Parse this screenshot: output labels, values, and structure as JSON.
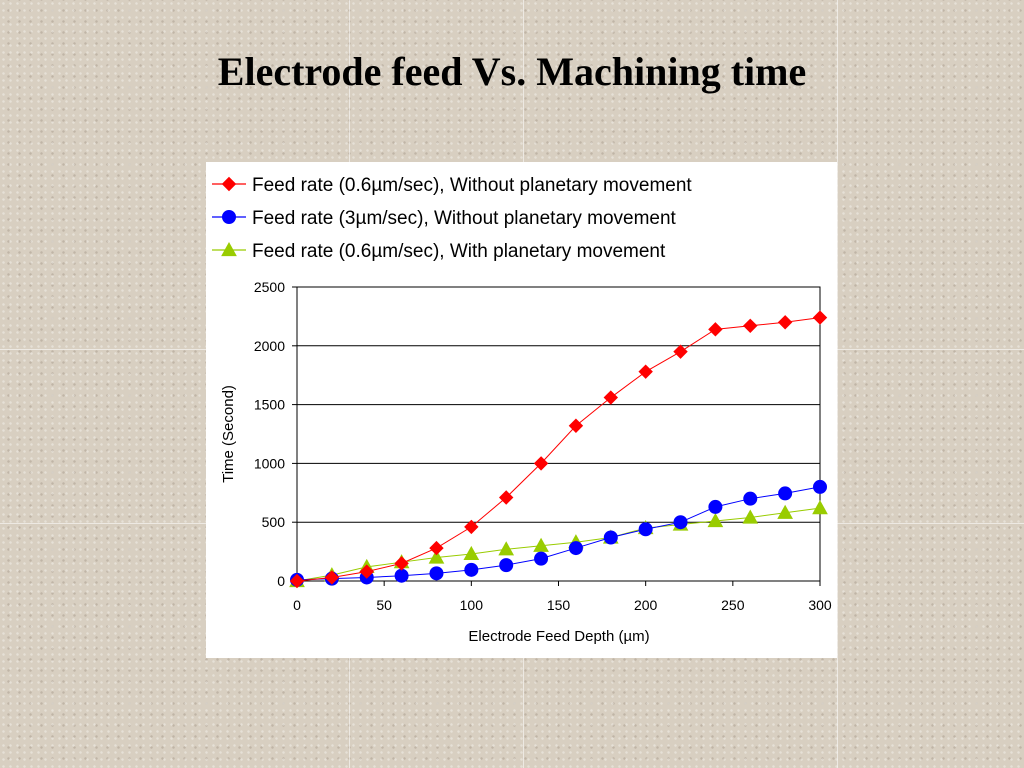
{
  "slide": {
    "title": "Electrode feed Vs. Machining time"
  },
  "chart_data": {
    "type": "line",
    "title": "",
    "xlabel": "Electrode Feed Depth (µm)",
    "ylabel": "Time (Second)",
    "xlim": [
      0,
      300
    ],
    "ylim": [
      0,
      2500
    ],
    "xticks": [
      0,
      50,
      100,
      150,
      200,
      250,
      300
    ],
    "yticks": [
      0,
      500,
      1000,
      1500,
      2000,
      2500
    ],
    "grid": "horizontal",
    "legend_position": "top",
    "series": [
      {
        "name": "Feed rate (0.6µm/sec), Without planetary movement",
        "color": "#ff0000",
        "marker": "diamond",
        "x": [
          0,
          20,
          40,
          60,
          80,
          100,
          120,
          140,
          160,
          180,
          200,
          220,
          240,
          260,
          280,
          300
        ],
        "y": [
          0,
          30,
          80,
          150,
          280,
          460,
          710,
          1000,
          1320,
          1560,
          1780,
          1950,
          2140,
          2170,
          2200,
          2240
        ]
      },
      {
        "name": "Feed rate (3µm/sec), Without planetary movement",
        "color": "#0000ff",
        "marker": "circle",
        "x": [
          0,
          20,
          40,
          60,
          80,
          100,
          120,
          140,
          160,
          180,
          200,
          220,
          240,
          260,
          280,
          300
        ],
        "y": [
          10,
          20,
          30,
          45,
          65,
          95,
          135,
          190,
          280,
          370,
          440,
          500,
          630,
          700,
          745,
          800
        ]
      },
      {
        "name": "Feed rate (0.6µm/sec), With planetary movement",
        "color": "#99cc00",
        "marker": "triangle",
        "x": [
          0,
          20,
          40,
          60,
          80,
          100,
          120,
          140,
          160,
          180,
          200,
          220,
          240,
          260,
          280,
          300
        ],
        "y": [
          0,
          50,
          120,
          160,
          200,
          230,
          270,
          300,
          330,
          370,
          450,
          480,
          510,
          540,
          580,
          620
        ]
      }
    ]
  }
}
